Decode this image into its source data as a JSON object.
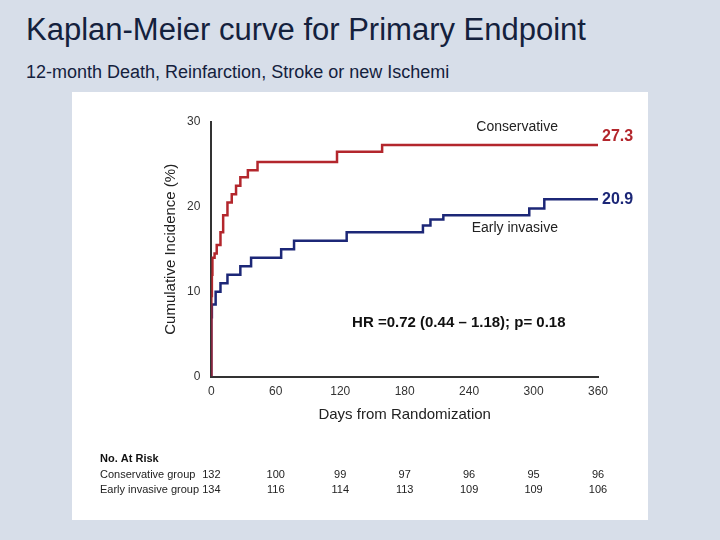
{
  "chart_data": {
    "type": "line",
    "title": "Kaplan-Meier curve for Primary Endpoint",
    "subtitle": "12-month Death, Reinfarction, Stroke or new Ischemi",
    "x_label": "Days from Randomization",
    "y_label": "Cumulative Incidence (%)",
    "line_style": "step",
    "grid": false,
    "xlim": [
      0,
      360
    ],
    "xticks": [
      0,
      60,
      120,
      180,
      240,
      300,
      360
    ],
    "ylim": [
      0,
      30
    ],
    "yticks": [
      0,
      10,
      20,
      30
    ],
    "annotation": "HR =0.72 (0.44 – 1.18); p= 0.18",
    "series": [
      {
        "name": "Conservative",
        "color": "#b3262c",
        "end_label": "27.3",
        "x": [
          0,
          0.5,
          1,
          3,
          5,
          8.5,
          11,
          15,
          19,
          23,
          27,
          34,
          43,
          117,
          159,
          197,
          360
        ],
        "values": [
          0,
          9.5,
          12,
          14,
          14.5,
          15.5,
          17,
          19,
          20.5,
          21.5,
          22.5,
          23.5,
          24.3,
          25.3,
          26.5,
          27.3,
          27.3
        ]
      },
      {
        "name": "Early invasive",
        "color": "#1c2777",
        "end_label": "20.9",
        "x": [
          0,
          0.5,
          4,
          8.5,
          15,
          27,
          37,
          65,
          77,
          126,
          197,
          204,
          216,
          296,
          310,
          320,
          360
        ],
        "values": [
          0,
          7,
          8.5,
          10,
          11,
          12,
          13,
          14,
          15,
          16,
          17,
          17.8,
          18.5,
          19,
          19.8,
          20.9,
          20.9
        ]
      }
    ],
    "at_risk": {
      "title": "No. At Risk",
      "rows": [
        {
          "label": "Conservative group",
          "values": [
            132,
            100,
            99,
            97,
            96,
            95,
            96
          ]
        },
        {
          "label": "Early invasive group",
          "values": [
            134,
            116,
            114,
            113,
            109,
            109,
            106
          ]
        }
      ]
    }
  }
}
